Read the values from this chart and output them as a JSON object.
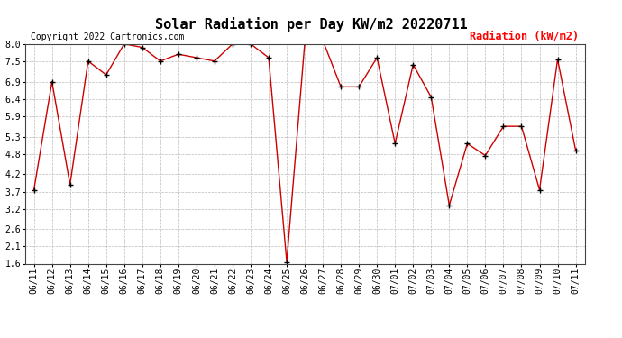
{
  "title": "Solar Radiation per Day KW/m2 20220711",
  "copyright": "Copyright 2022 Cartronics.com",
  "legend_label": "Radiation (kW/m2)",
  "dates": [
    "06/11",
    "06/12",
    "06/13",
    "06/14",
    "06/15",
    "06/16",
    "06/17",
    "06/18",
    "06/19",
    "06/20",
    "06/21",
    "06/22",
    "06/23",
    "06/24",
    "06/25",
    "06/26",
    "06/27",
    "06/28",
    "06/29",
    "06/30",
    "07/01",
    "07/02",
    "07/03",
    "07/04",
    "07/05",
    "07/06",
    "07/07",
    "07/08",
    "07/09",
    "07/10",
    "07/11"
  ],
  "values": [
    3.75,
    6.9,
    3.9,
    7.5,
    7.1,
    8.0,
    7.9,
    7.5,
    7.7,
    7.6,
    7.5,
    8.0,
    8.0,
    7.6,
    1.65,
    8.05,
    8.1,
    6.75,
    6.75,
    7.6,
    5.1,
    7.4,
    6.45,
    3.3,
    5.1,
    4.75,
    5.6,
    5.6,
    3.75,
    7.55,
    4.9
  ],
  "ylim": [
    1.6,
    8.0
  ],
  "yticks": [
    1.6,
    2.1,
    2.6,
    3.2,
    3.7,
    4.2,
    4.8,
    5.3,
    5.9,
    6.4,
    6.9,
    7.5,
    8.0
  ],
  "ytick_labels": [
    "1.6",
    "2.1",
    "2.6",
    "3.2",
    "3.7",
    "4.2",
    "4.8",
    "5.3",
    "5.9",
    "6.4",
    "6.9",
    "7.5",
    "8.0"
  ],
  "line_color": "#cc0000",
  "marker": "+",
  "marker_color": "black",
  "grid_color": "#bbbbbb",
  "bg_color": "white",
  "title_fontsize": 11,
  "copyright_fontsize": 7,
  "legend_fontsize": 8.5,
  "tick_fontsize": 7,
  "border_color": "#444444"
}
